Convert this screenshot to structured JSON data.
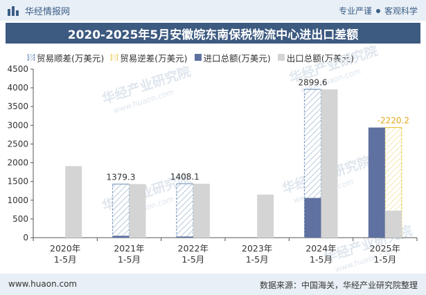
{
  "header": {
    "brand_name": "华经情报网",
    "tagline_left": "专业严谨",
    "tagline_right": "客观科学"
  },
  "footer": {
    "url": "www.huaon.com",
    "source": "数据来源：中国海关，华经产业研究院整理"
  },
  "watermark": {
    "text": "华经产业研究院",
    "url": "www.huaon.com"
  },
  "colors": {
    "surplus": "#7f9cc0",
    "deficit": "#e8c53a",
    "import": "#5e71a0",
    "export": "#d4d4d4",
    "title_bg": "#3d5a80"
  },
  "chart_data": {
    "type": "bar",
    "title": "2020-2025年5月安徽皖东南保税物流中心进出口差额",
    "legend": [
      "贸易顺差(万美元)",
      "贸易逆差(万美元)",
      "进口总额(万美元)",
      "出口总额(万美元)"
    ],
    "categories": [
      "2020年\n1-5月",
      "2021年\n1-5月",
      "2022年\n1-5月",
      "2023年\n1-5月",
      "2024年\n1-5月",
      "2025年\n1-5月"
    ],
    "ylim": [
      0,
      4500
    ],
    "yticks": [
      0,
      500,
      1000,
      1500,
      2000,
      2500,
      3000,
      3500,
      4000,
      4500
    ],
    "series": [
      {
        "name": "进口总额(万美元)",
        "values": [
          0,
          50,
          30,
          0,
          1060,
          2940
        ]
      },
      {
        "name": "出口总额(万美元)",
        "values": [
          1910,
          1430,
          1440,
          1150,
          3960,
          720
        ]
      }
    ],
    "balance": [
      {
        "value": null,
        "label": ""
      },
      {
        "value": 1379.3,
        "label": "1379.3"
      },
      {
        "value": 1408.1,
        "label": "1408.1"
      },
      {
        "value": null,
        "label": ""
      },
      {
        "value": 2899.6,
        "label": "2899.6"
      },
      {
        "value": -2220.2,
        "label": "-2220.2"
      }
    ]
  }
}
